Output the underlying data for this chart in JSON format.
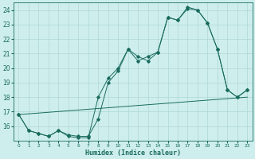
{
  "xlabel": "Humidex (Indice chaleur)",
  "bg_color": "#ceeeed",
  "line_color": "#1a6b5e",
  "grid_color": "#aed8d5",
  "series1_x": [
    0,
    1,
    2,
    3,
    4,
    5,
    6,
    7,
    8,
    9,
    10,
    11,
    12,
    13,
    14,
    15,
    16,
    17,
    18,
    19,
    20,
    21,
    22,
    23
  ],
  "series1_y": [
    16.8,
    15.7,
    15.5,
    15.3,
    15.7,
    15.3,
    15.2,
    15.2,
    18.0,
    19.3,
    20.0,
    21.3,
    20.8,
    20.5,
    21.1,
    23.5,
    23.3,
    24.1,
    24.0,
    23.1,
    21.3,
    18.5,
    18.0,
    18.5
  ],
  "series2_x": [
    0,
    1,
    2,
    3,
    4,
    5,
    6,
    7,
    8,
    9,
    10,
    11,
    12,
    13,
    14,
    15,
    16,
    17,
    18,
    19,
    20,
    21,
    22,
    23
  ],
  "series2_y": [
    16.8,
    15.7,
    15.5,
    15.3,
    15.7,
    15.4,
    15.3,
    15.3,
    16.5,
    19.0,
    19.8,
    21.3,
    20.5,
    20.8,
    21.1,
    23.5,
    23.3,
    24.2,
    24.0,
    23.1,
    21.3,
    18.5,
    18.0,
    18.5
  ],
  "series3_x": [
    0,
    23
  ],
  "series3_y": [
    16.8,
    18.0
  ],
  "xlim": [
    -0.5,
    23.5
  ],
  "ylim": [
    15.0,
    24.5
  ],
  "xticks": [
    0,
    1,
    2,
    3,
    4,
    5,
    6,
    7,
    8,
    9,
    10,
    11,
    12,
    13,
    14,
    15,
    16,
    17,
    18,
    19,
    20,
    21,
    22,
    23
  ],
  "yticks": [
    16,
    17,
    18,
    19,
    20,
    21,
    22,
    23,
    24
  ]
}
